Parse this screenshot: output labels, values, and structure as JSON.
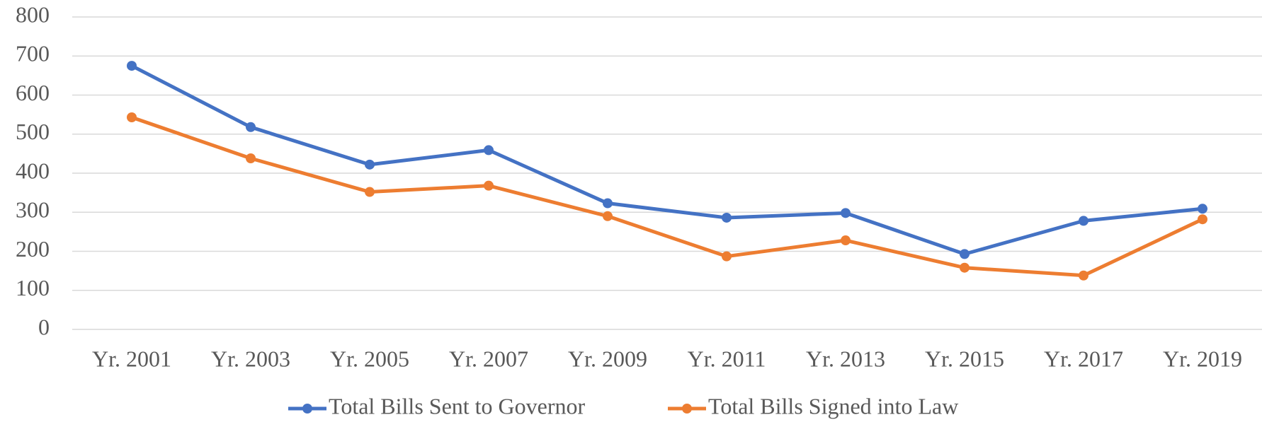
{
  "chart_data": {
    "type": "line",
    "categories": [
      "Yr. 2001",
      "Yr. 2003",
      "Yr. 2005",
      "Yr. 2007",
      "Yr. 2009",
      "Yr. 2011",
      "Yr. 2013",
      "Yr. 2015",
      "Yr. 2017",
      "Yr. 2019"
    ],
    "series": [
      {
        "name": "Total Bills Sent to Governor",
        "color": "#4472c4",
        "values": [
          675,
          518,
          422,
          459,
          323,
          286,
          298,
          193,
          278,
          309
        ]
      },
      {
        "name": "Total Bills Signed into Law",
        "color": "#ed7d31",
        "values": [
          543,
          438,
          352,
          368,
          290,
          187,
          228,
          158,
          138,
          282
        ]
      }
    ],
    "ylim": [
      0,
      800
    ],
    "yticks": [
      0,
      100,
      200,
      300,
      400,
      500,
      600,
      700,
      800
    ],
    "grid": true,
    "legend": "bottom"
  }
}
